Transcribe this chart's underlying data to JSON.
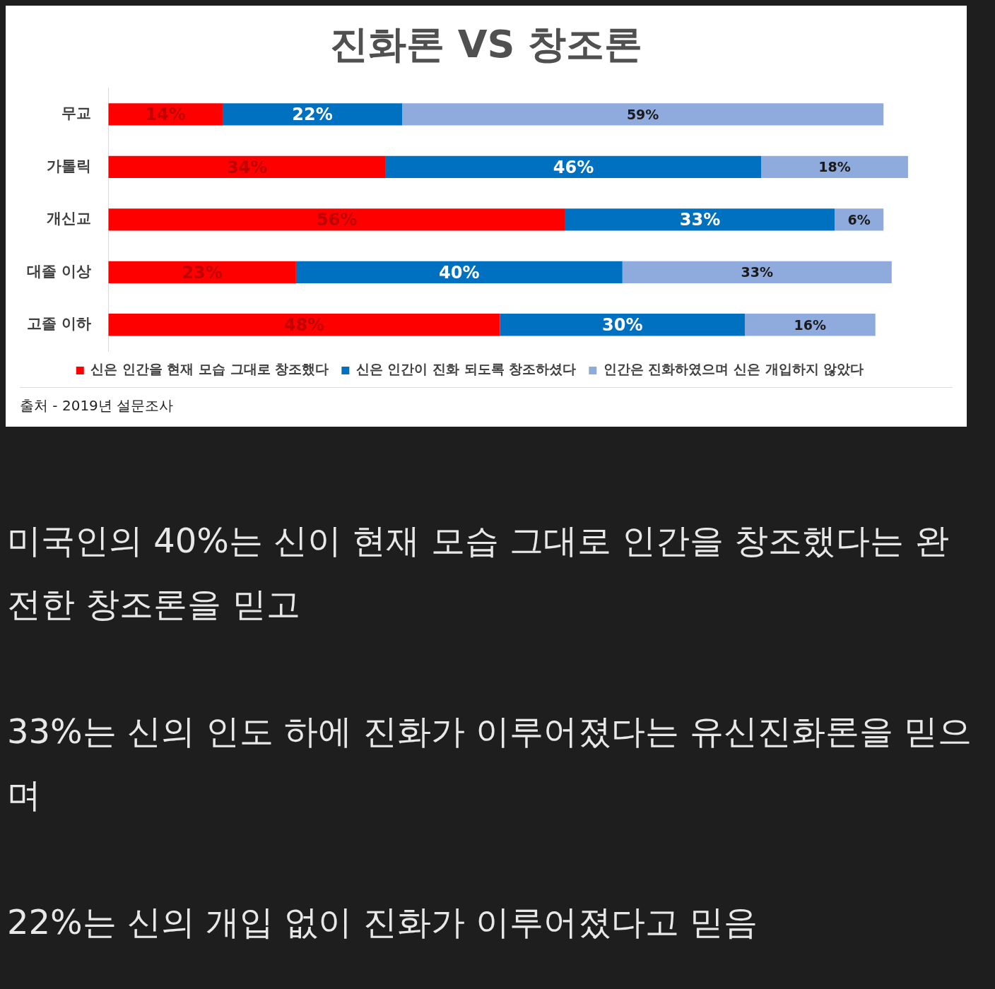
{
  "chart_data": {
    "type": "bar",
    "orientation": "horizontal",
    "stacked": true,
    "title": "진화론 VS 창조론",
    "categories": [
      "무교",
      "가톨릭",
      "개신교",
      "대졸 이상",
      "고졸 이하"
    ],
    "series": [
      {
        "name": "신은 인간을 현재 모습 그대로 창조했다",
        "color": "#ff0000",
        "values": [
          14,
          34,
          56,
          23,
          48
        ],
        "value_labels": [
          "14%",
          "34%",
          "56%",
          "23%",
          "48%"
        ]
      },
      {
        "name": "신은 인간이 진화 되도록 창조하셨다",
        "color": "#0070c0",
        "values": [
          22,
          46,
          33,
          40,
          30
        ],
        "value_labels": [
          "22%",
          "46%",
          "33%",
          "40%",
          "30%"
        ]
      },
      {
        "name": "인간은 진화하였으며 신은 개입하지 않았다",
        "color": "#8faadc",
        "values": [
          59,
          18,
          6,
          33,
          16
        ],
        "value_labels": [
          "59%",
          "18%",
          "6%",
          "33%",
          "16%"
        ]
      }
    ],
    "tick_labels": "y",
    "legend": "bottom",
    "annotations": [
      "출처 - 2019년 설문조사",
      "미국인의 40%는 신이 현재 모습 그대로 인간을 창조했다는 완전한 창조론을 믿고",
      "33%는 신의 인도 하에 진화가 이루어졌다는 유신진화론을 믿으며",
      "22%는 신의 개입 없이 진화가 이루어졌다고 믿음"
    ]
  }
}
